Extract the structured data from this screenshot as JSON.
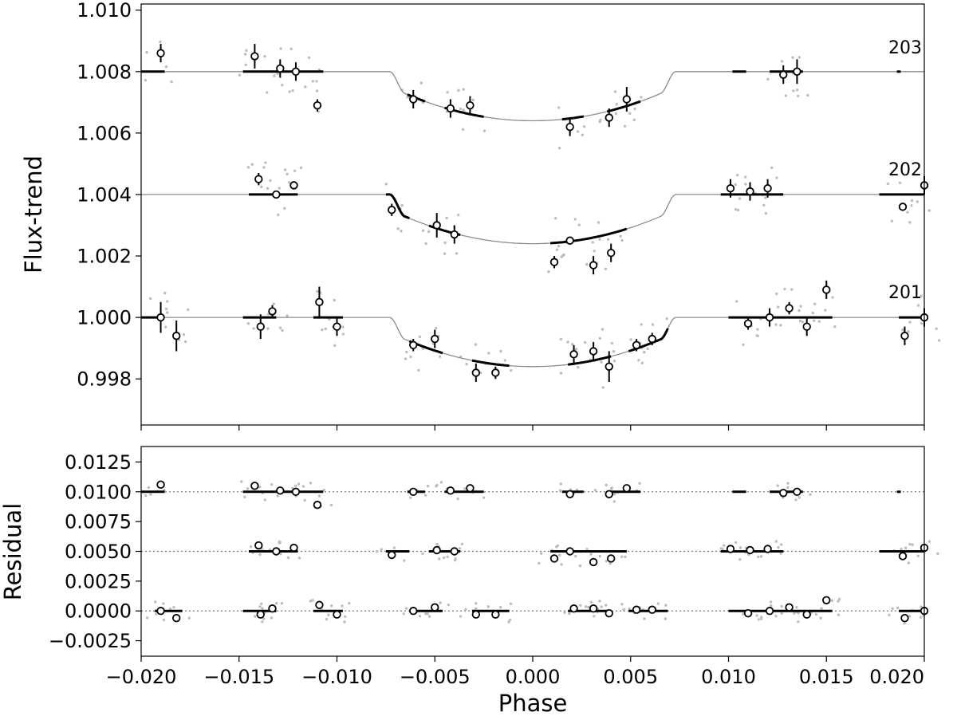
{
  "chart_data": [
    {
      "type": "scatter",
      "panel": "top",
      "xlabel": "",
      "ylabel": "Flux-trend",
      "xlim": [
        -0.02,
        0.02
      ],
      "ylim": [
        0.9965,
        1.0102
      ],
      "yticks": [
        0.998,
        1.0,
        1.002,
        1.004,
        1.006,
        1.008,
        1.01
      ],
      "ytick_labels": [
        "0.998",
        "1.000",
        "1.002",
        "1.004",
        "1.006",
        "1.008",
        "1.010"
      ],
      "xticks": [
        -0.02,
        -0.015,
        -0.01,
        -0.005,
        0.0,
        0.005,
        0.01,
        0.015,
        0.02
      ],
      "model": {
        "ingress_start": 0.0073,
        "full_start": 0.0065,
        "depth": 0.0016
      },
      "series": [
        {
          "name": "201",
          "offset": 1.0,
          "binned": [
            {
              "x": -0.019,
              "y": 1.0,
              "err": 0.0005
            },
            {
              "x": -0.0182,
              "y": 0.9994,
              "err": 0.0005
            },
            {
              "x": -0.0139,
              "y": 0.9997,
              "err": 0.0004
            },
            {
              "x": -0.0133,
              "y": 1.0002,
              "err": 0.0002
            },
            {
              "x": -0.0109,
              "y": 1.0005,
              "err": 0.0005
            },
            {
              "x": -0.01,
              "y": 0.9997,
              "err": 0.0003
            },
            {
              "x": -0.0061,
              "y": 0.9991,
              "err": 0.0002
            },
            {
              "x": -0.005,
              "y": 0.9993,
              "err": 0.0003
            },
            {
              "x": -0.0029,
              "y": 0.9982,
              "err": 0.0003
            },
            {
              "x": -0.0019,
              "y": 0.9982,
              "err": 0.0002
            },
            {
              "x": 0.0021,
              "y": 0.9988,
              "err": 0.0003
            },
            {
              "x": 0.0031,
              "y": 0.9989,
              "err": 0.0003
            },
            {
              "x": 0.0039,
              "y": 0.9984,
              "err": 0.0005
            },
            {
              "x": 0.0053,
              "y": 0.9991,
              "err": 0.0002
            },
            {
              "x": 0.0061,
              "y": 0.9993,
              "err": 0.0002
            },
            {
              "x": 0.011,
              "y": 0.9998,
              "err": 0.0002
            },
            {
              "x": 0.0121,
              "y": 1.0,
              "err": 0.0003
            },
            {
              "x": 0.0131,
              "y": 1.0003,
              "err": 0.0002
            },
            {
              "x": 0.014,
              "y": 0.9997,
              "err": 0.0003
            },
            {
              "x": 0.015,
              "y": 1.0009,
              "err": 0.0003
            },
            {
              "x": 0.019,
              "y": 0.9994,
              "err": 0.0003
            },
            {
              "x": 0.02,
              "y": 1.0,
              "err": 0.0003
            }
          ],
          "segments": [
            [
              -0.02,
              -0.0189
            ],
            [
              -0.0148,
              -0.0131
            ],
            [
              -0.0112,
              -0.0097
            ],
            [
              -0.0063,
              -0.0046
            ],
            [
              -0.0031,
              -0.0012
            ],
            [
              0.0018,
              0.004
            ],
            [
              0.0049,
              0.0069
            ],
            [
              0.01,
              0.0153
            ],
            [
              0.0187,
              0.02
            ]
          ]
        },
        {
          "name": "202",
          "offset": 1.004,
          "binned": [
            {
              "x": -0.014,
              "y": 1.0045,
              "err": 0.0002
            },
            {
              "x": -0.0131,
              "y": 1.004,
              "err": 0.0001
            },
            {
              "x": -0.0122,
              "y": 1.0043,
              "err": 0.0001
            },
            {
              "x": -0.0072,
              "y": 1.0035,
              "err": 0.0002
            },
            {
              "x": -0.0049,
              "y": 1.003,
              "err": 0.0004
            },
            {
              "x": -0.004,
              "y": 1.0027,
              "err": 0.0003
            },
            {
              "x": 0.0011,
              "y": 1.0018,
              "err": 0.0002
            },
            {
              "x": 0.0019,
              "y": 1.0025,
              "err": 0.0001
            },
            {
              "x": 0.0031,
              "y": 1.0017,
              "err": 0.0003
            },
            {
              "x": 0.004,
              "y": 1.0021,
              "err": 0.0003
            },
            {
              "x": 0.0101,
              "y": 1.0042,
              "err": 0.0003
            },
            {
              "x": 0.0111,
              "y": 1.0041,
              "err": 0.0003
            },
            {
              "x": 0.012,
              "y": 1.0042,
              "err": 0.0003
            },
            {
              "x": 0.0189,
              "y": 1.0036,
              "err": 0.0001
            },
            {
              "x": 0.02,
              "y": 1.0043,
              "err": 0.0003
            }
          ],
          "segments": [
            [
              -0.0145,
              -0.012
            ],
            [
              -0.0075,
              -0.0063
            ],
            [
              -0.0053,
              -0.0037
            ],
            [
              0.0009,
              0.0048
            ],
            [
              0.0096,
              0.0128
            ],
            [
              0.0177,
              0.02
            ]
          ]
        },
        {
          "name": "203",
          "offset": 1.008,
          "binned": [
            {
              "x": -0.019,
              "y": 1.0086,
              "err": 0.0003
            },
            {
              "x": -0.0142,
              "y": 1.0085,
              "err": 0.0004
            },
            {
              "x": -0.0129,
              "y": 1.0081,
              "err": 0.0003
            },
            {
              "x": -0.0121,
              "y": 1.008,
              "err": 0.0003
            },
            {
              "x": -0.011,
              "y": 1.0069,
              "err": 0.0002
            },
            {
              "x": -0.0061,
              "y": 1.0071,
              "err": 0.0003
            },
            {
              "x": -0.0042,
              "y": 1.0068,
              "err": 0.0003
            },
            {
              "x": -0.0032,
              "y": 1.0069,
              "err": 0.0003
            },
            {
              "x": 0.0019,
              "y": 1.0062,
              "err": 0.0003
            },
            {
              "x": 0.0039,
              "y": 1.0065,
              "err": 0.0003
            },
            {
              "x": 0.0048,
              "y": 1.0071,
              "err": 0.0004
            },
            {
              "x": 0.0128,
              "y": 1.0079,
              "err": 0.0003
            },
            {
              "x": 0.0135,
              "y": 1.008,
              "err": 0.0004
            }
          ],
          "segments": [
            [
              -0.02,
              -0.0188
            ],
            [
              -0.0148,
              -0.0107
            ],
            [
              -0.0064,
              -0.0055
            ],
            [
              -0.0045,
              -0.0025
            ],
            [
              0.0015,
              0.0026
            ],
            [
              0.0038,
              0.0055
            ],
            [
              0.0102,
              0.0109
            ],
            [
              0.0121,
              0.0138
            ],
            [
              0.0186,
              0.0188
            ]
          ]
        }
      ],
      "annotations": [
        "203",
        "202",
        "201"
      ]
    },
    {
      "type": "scatter",
      "panel": "bottom",
      "xlabel": "Phase",
      "ylabel": "Residual",
      "xlim": [
        -0.02,
        0.02
      ],
      "ylim": [
        -0.0038,
        0.0138
      ],
      "yticks": [
        -0.0025,
        0.0,
        0.0025,
        0.005,
        0.0075,
        0.01,
        0.0125
      ],
      "ytick_labels": [
        "−0.0025",
        "0.0000",
        "0.0025",
        "0.0050",
        "0.0075",
        "0.0100",
        "0.0125"
      ],
      "xticks": [
        -0.02,
        -0.015,
        -0.01,
        -0.005,
        0.0,
        0.005,
        0.01,
        0.015,
        0.02
      ],
      "xtick_labels": [
        "−0.020",
        "−0.015",
        "−0.010",
        "−0.005",
        "0.000",
        "0.005",
        "0.010",
        "0.015",
        "0.020"
      ],
      "reference_lines": [
        0.0,
        0.005,
        0.01
      ],
      "series": [
        {
          "name": "201",
          "offset": 0.0,
          "binned": [
            {
              "x": -0.019,
              "y": 0.0
            },
            {
              "x": -0.0182,
              "y": -0.0006
            },
            {
              "x": -0.0139,
              "y": -0.0003
            },
            {
              "x": -0.0133,
              "y": 0.0002
            },
            {
              "x": -0.0109,
              "y": 0.0005
            },
            {
              "x": -0.01,
              "y": -0.0003
            },
            {
              "x": -0.0061,
              "y": 0.0
            },
            {
              "x": -0.005,
              "y": 0.0003
            },
            {
              "x": -0.0029,
              "y": -0.0003
            },
            {
              "x": -0.0019,
              "y": -0.0003
            },
            {
              "x": 0.0021,
              "y": 0.0002
            },
            {
              "x": 0.0031,
              "y": 0.0002
            },
            {
              "x": 0.0039,
              "y": -0.0002
            },
            {
              "x": 0.0053,
              "y": 0.0001
            },
            {
              "x": 0.0061,
              "y": 0.0001
            },
            {
              "x": 0.011,
              "y": -0.0002
            },
            {
              "x": 0.0121,
              "y": 0.0
            },
            {
              "x": 0.0131,
              "y": 0.0003
            },
            {
              "x": 0.014,
              "y": -0.0003
            },
            {
              "x": 0.015,
              "y": 0.0009
            },
            {
              "x": 0.019,
              "y": -0.0006
            },
            {
              "x": 0.02,
              "y": 0.0
            }
          ],
          "segments": [
            [
              -0.0193,
              -0.0179
            ],
            [
              -0.0148,
              -0.0131
            ],
            [
              -0.0112,
              -0.0097
            ],
            [
              -0.0063,
              -0.0046
            ],
            [
              -0.0031,
              -0.0012
            ],
            [
              0.0018,
              0.004
            ],
            [
              0.0049,
              0.0069
            ],
            [
              0.01,
              0.0153
            ],
            [
              0.0187,
              0.02
            ]
          ]
        },
        {
          "name": "202",
          "offset": 0.005,
          "binned": [
            {
              "x": -0.014,
              "y": 0.0055
            },
            {
              "x": -0.0131,
              "y": 0.005
            },
            {
              "x": -0.0122,
              "y": 0.0053
            },
            {
              "x": -0.0072,
              "y": 0.0047
            },
            {
              "x": -0.0049,
              "y": 0.0051
            },
            {
              "x": -0.004,
              "y": 0.005
            },
            {
              "x": 0.0011,
              "y": 0.0044
            },
            {
              "x": 0.0019,
              "y": 0.005
            },
            {
              "x": 0.0031,
              "y": 0.0041
            },
            {
              "x": 0.004,
              "y": 0.0044
            },
            {
              "x": 0.0101,
              "y": 0.0052
            },
            {
              "x": 0.0111,
              "y": 0.0051
            },
            {
              "x": 0.012,
              "y": 0.0052
            },
            {
              "x": 0.0189,
              "y": 0.0046
            },
            {
              "x": 0.02,
              "y": 0.0053
            }
          ],
          "segments": [
            [
              -0.0145,
              -0.012
            ],
            [
              -0.0075,
              -0.0063
            ],
            [
              -0.0053,
              -0.0037
            ],
            [
              0.0009,
              0.0048
            ],
            [
              0.0096,
              0.0128
            ],
            [
              0.0177,
              0.02
            ]
          ]
        },
        {
          "name": "203",
          "offset": 0.01,
          "binned": [
            {
              "x": -0.019,
              "y": 0.0106
            },
            {
              "x": -0.0142,
              "y": 0.0105
            },
            {
              "x": -0.0129,
              "y": 0.0101
            },
            {
              "x": -0.0121,
              "y": 0.01
            },
            {
              "x": -0.011,
              "y": 0.0089
            },
            {
              "x": -0.0061,
              "y": 0.01
            },
            {
              "x": -0.0042,
              "y": 0.0101
            },
            {
              "x": -0.0032,
              "y": 0.0103
            },
            {
              "x": 0.0019,
              "y": 0.0098
            },
            {
              "x": 0.0039,
              "y": 0.0098
            },
            {
              "x": 0.0048,
              "y": 0.0103
            },
            {
              "x": 0.0128,
              "y": 0.0099
            },
            {
              "x": 0.0135,
              "y": 0.01
            }
          ],
          "segments": [
            [
              -0.02,
              -0.0188
            ],
            [
              -0.0148,
              -0.0107
            ],
            [
              -0.0064,
              -0.0055
            ],
            [
              -0.0045,
              -0.0025
            ],
            [
              0.0015,
              0.0026
            ],
            [
              0.0038,
              0.0055
            ],
            [
              0.0102,
              0.0109
            ],
            [
              0.0121,
              0.0138
            ],
            [
              0.0186,
              0.0188
            ]
          ]
        }
      ]
    }
  ]
}
